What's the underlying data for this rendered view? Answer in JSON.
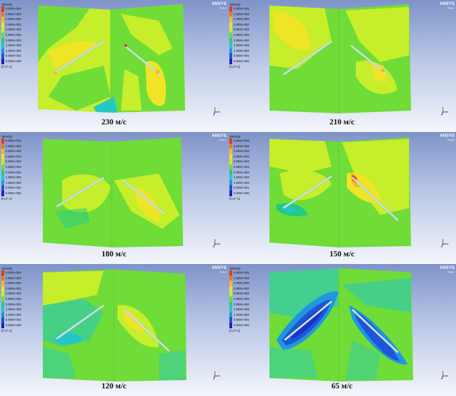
{
  "legend": {
    "title": "Velocity",
    "unit": "[m s^-1]",
    "labels_e": [
      "5.000e+002",
      "4.500e+002",
      "4.000e+002",
      "3.500e+002",
      "3.000e+002",
      "2.500e+002",
      "2.000e+002",
      "1.500e+002",
      "1.000e+002",
      "5.000e+001",
      "0.000e+000"
    ],
    "labels_space": [
      "5.000e+002",
      "4.500e+002",
      "4.000e+002",
      "3.500e+002",
      "3.000e+002",
      "2.500e+002",
      "2.000e+002",
      "1.500e+002",
      "1.000e+002",
      "5.000e+001",
      "0.000e+000"
    ],
    "colors": [
      "#e23a1a",
      "#f07a1c",
      "#f6b81e",
      "#f0e427",
      "#c6ee2a",
      "#6fdc37",
      "#23c98a",
      "#24c7c9",
      "#1f97e0",
      "#1f55d6",
      "#1b22c2"
    ]
  },
  "brand": {
    "name": "ANSYS",
    "version": "R16.2"
  },
  "panels": [
    {
      "caption": "230 м/с"
    },
    {
      "caption": "210 м/с"
    },
    {
      "caption": "180 м/с"
    },
    {
      "caption": "150 м/с"
    },
    {
      "caption": "120 м/с"
    },
    {
      "caption": "65 м/с"
    }
  ],
  "colors": {
    "green": "#6fdc37",
    "yellow_green": "#c6ee2a",
    "yellow": "#f0e427",
    "orange": "#f6b81e",
    "red": "#e23a1a",
    "cyan": "#24c7c9",
    "light_blue": "#1f97e0",
    "blue": "#1f55d6",
    "aqua": "#2fd6b8"
  }
}
